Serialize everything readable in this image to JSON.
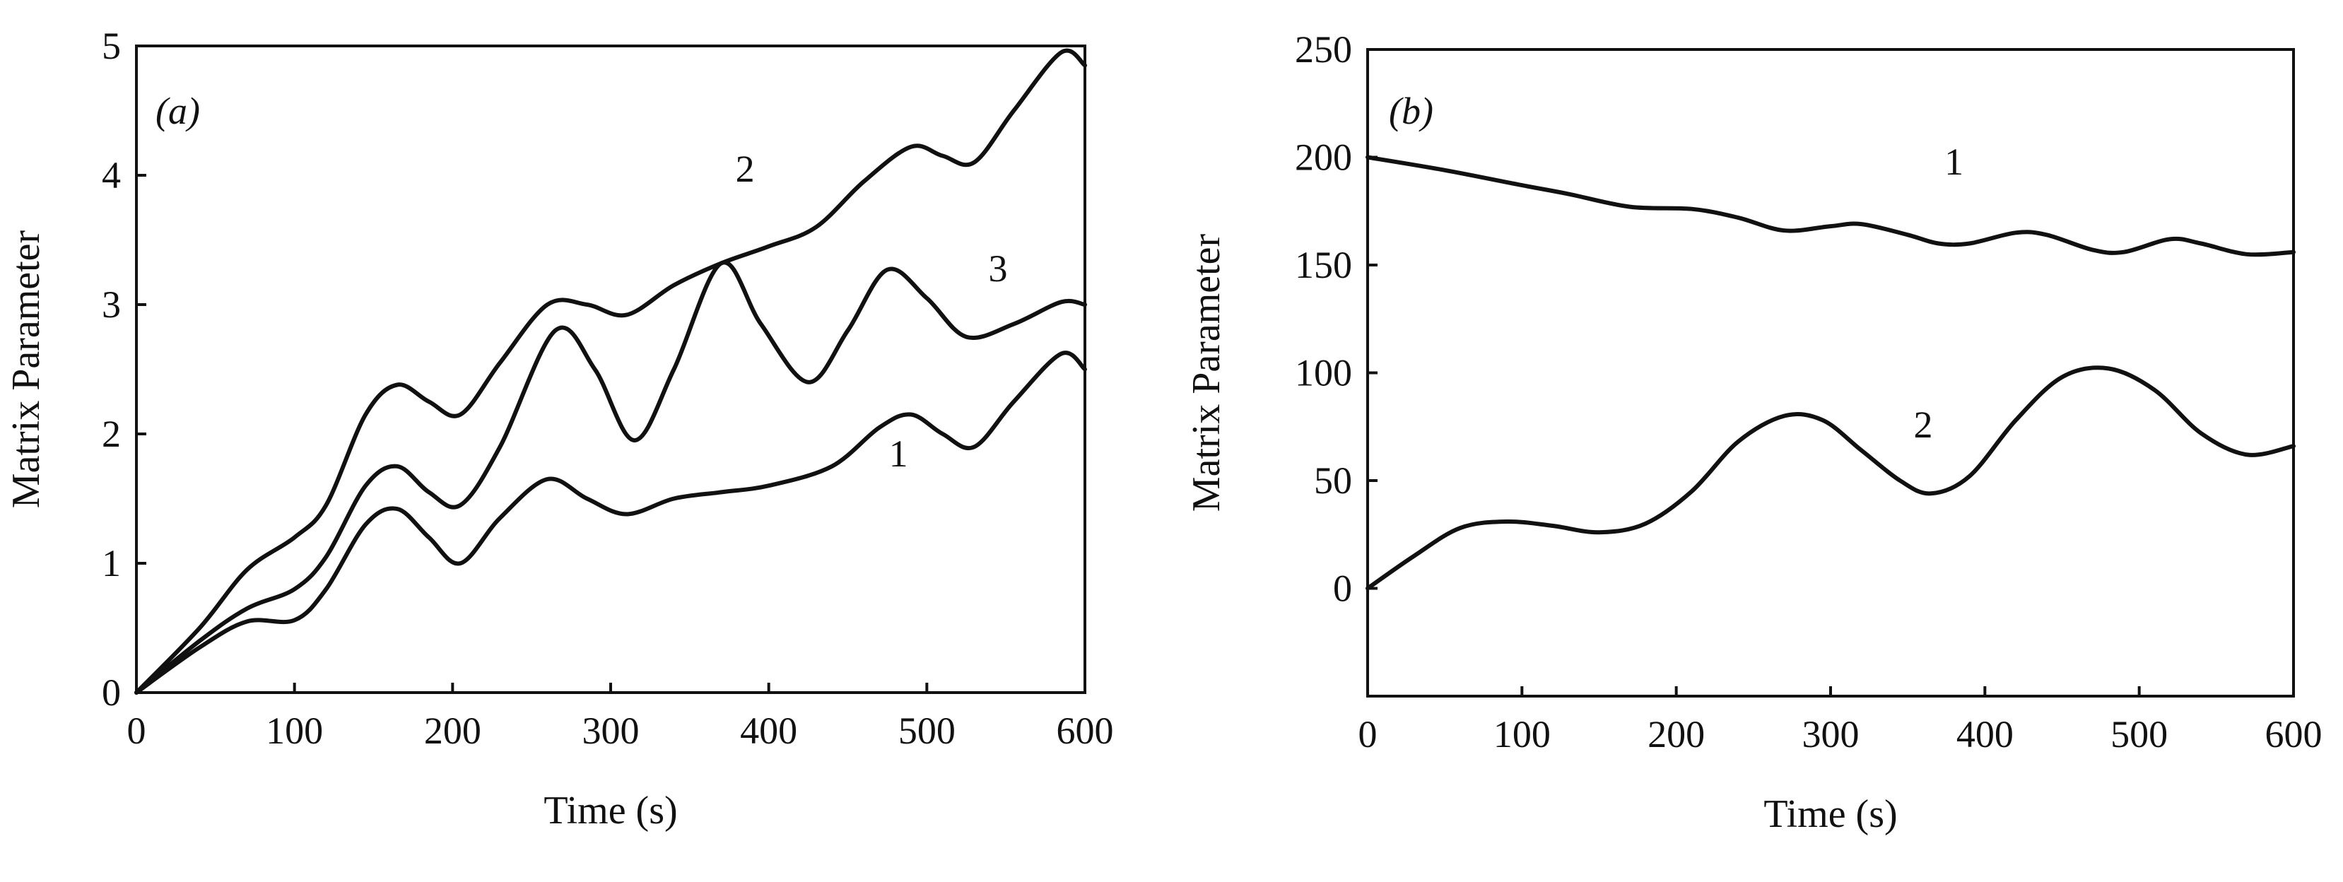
{
  "chart_data": [
    {
      "type": "line",
      "panel_label": "(a)",
      "xlabel": "Time (s)",
      "ylabel": "Matrix Parameter",
      "xlim": [
        0,
        600
      ],
      "ylim": [
        0,
        5
      ],
      "xticks": [
        0,
        100,
        200,
        300,
        400,
        500,
        600
      ],
      "yticks": [
        0,
        1,
        2,
        3,
        4,
        5
      ],
      "grid": false,
      "series": [
        {
          "name": "1",
          "x": [
            0,
            40,
            70,
            100,
            120,
            145,
            165,
            185,
            205,
            230,
            260,
            285,
            310,
            340,
            370,
            400,
            440,
            470,
            490,
            510,
            530,
            555,
            585,
            600
          ],
          "y": [
            0,
            0.35,
            0.55,
            0.56,
            0.8,
            1.3,
            1.42,
            1.2,
            1.0,
            1.35,
            1.65,
            1.5,
            1.38,
            1.5,
            1.55,
            1.6,
            1.75,
            2.05,
            2.15,
            2.0,
            1.9,
            2.25,
            2.62,
            2.5
          ]
        },
        {
          "name": "2",
          "x": [
            0,
            40,
            70,
            100,
            120,
            145,
            165,
            185,
            205,
            230,
            260,
            285,
            310,
            340,
            370,
            400,
            430,
            460,
            490,
            510,
            530,
            555,
            585,
            600
          ],
          "y": [
            0,
            0.5,
            0.95,
            1.2,
            1.45,
            2.15,
            2.38,
            2.25,
            2.15,
            2.55,
            3.0,
            3.0,
            2.92,
            3.15,
            3.32,
            3.45,
            3.6,
            3.95,
            4.22,
            4.15,
            4.1,
            4.5,
            4.95,
            4.85
          ]
        },
        {
          "name": "3",
          "x": [
            0,
            40,
            70,
            100,
            120,
            145,
            165,
            185,
            205,
            230,
            265,
            290,
            315,
            340,
            370,
            395,
            425,
            450,
            475,
            500,
            525,
            555,
            585,
            600
          ],
          "y": [
            0,
            0.4,
            0.65,
            0.8,
            1.05,
            1.6,
            1.75,
            1.55,
            1.45,
            1.9,
            2.8,
            2.5,
            1.95,
            2.5,
            3.32,
            2.85,
            2.4,
            2.8,
            3.27,
            3.05,
            2.75,
            2.85,
            3.02,
            3.0
          ]
        }
      ],
      "annotations": [
        {
          "text": "2",
          "x": 385,
          "y": 3.95
        },
        {
          "text": "3",
          "x": 545,
          "y": 3.18
        },
        {
          "text": "1",
          "x": 482,
          "y": 1.75
        }
      ]
    },
    {
      "type": "line",
      "panel_label": "(b)",
      "xlabel": "Time (s)",
      "ylabel": "Matrix Parameter",
      "xlim": [
        0,
        600
      ],
      "ylim": [
        -50,
        250
      ],
      "xticks": [
        0,
        100,
        200,
        300,
        400,
        500,
        600
      ],
      "yticks": [
        0,
        50,
        100,
        150,
        200,
        250
      ],
      "grid": false,
      "series": [
        {
          "name": "1",
          "x": [
            0,
            50,
            100,
            130,
            170,
            210,
            240,
            270,
            300,
            320,
            350,
            370,
            390,
            420,
            440,
            470,
            490,
            520,
            540,
            570,
            600
          ],
          "y": [
            200,
            194,
            187,
            183,
            177,
            176,
            172,
            166,
            168,
            169,
            164,
            160,
            160,
            165,
            164,
            157,
            156,
            162,
            160,
            155,
            156
          ]
        },
        {
          "name": "2",
          "x": [
            0,
            30,
            60,
            90,
            120,
            150,
            180,
            210,
            240,
            270,
            295,
            320,
            345,
            365,
            390,
            420,
            450,
            480,
            510,
            540,
            570,
            600
          ],
          "y": [
            0,
            15,
            28,
            31,
            29,
            26,
            30,
            45,
            68,
            80,
            78,
            64,
            50,
            44,
            52,
            78,
            98,
            102,
            92,
            72,
            62,
            66
          ]
        }
      ],
      "annotations": [
        {
          "text": "1",
          "x": 380,
          "y": 192
        },
        {
          "text": "2",
          "x": 360,
          "y": 70
        }
      ]
    }
  ]
}
